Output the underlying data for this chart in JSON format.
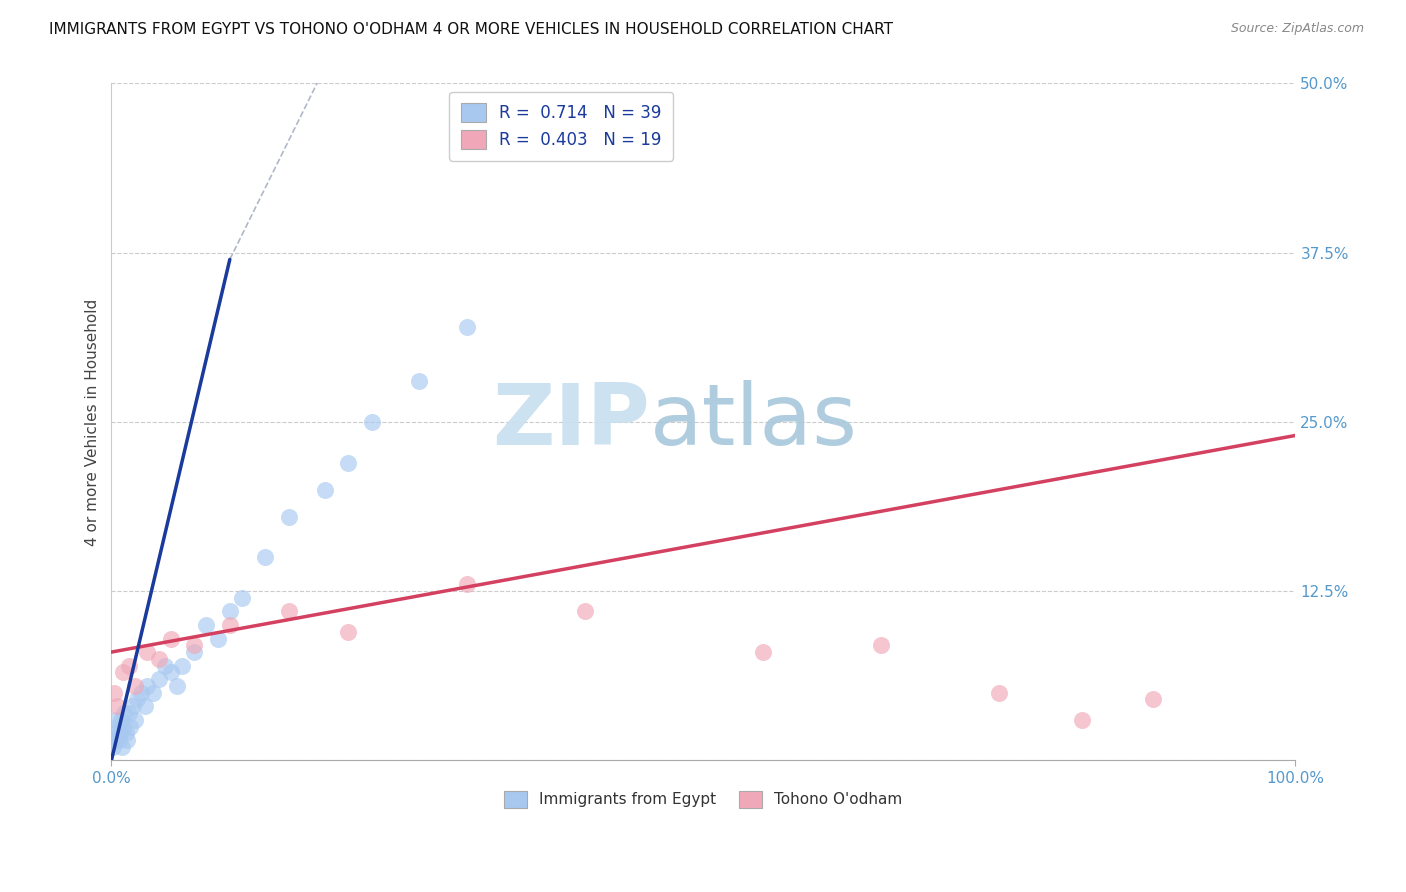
{
  "title": "IMMIGRANTS FROM EGYPT VS TOHONO O'ODHAM 4 OR MORE VEHICLES IN HOUSEHOLD CORRELATION CHART",
  "source": "Source: ZipAtlas.com",
  "ylabel_label": "4 or more Vehicles in Household",
  "legend_labels": [
    "Immigrants from Egypt",
    "Tohono O'odham"
  ],
  "R_blue": 0.714,
  "N_blue": 39,
  "R_pink": 0.403,
  "N_pink": 19,
  "blue_scatter_color": "#a8c8f0",
  "pink_scatter_color": "#f0a8b8",
  "blue_line_color": "#1a3a9c",
  "pink_line_color": "#d44060",
  "dashed_line_color": "#b0b8c8",
  "watermark_zip_color": "#c8dff0",
  "watermark_atlas_color": "#a8c8dc",
  "blue_x": [
    0.1,
    0.2,
    0.3,
    0.4,
    0.5,
    0.6,
    0.7,
    0.8,
    0.9,
    1.0,
    1.1,
    1.2,
    1.3,
    1.5,
    1.6,
    1.8,
    2.0,
    2.2,
    2.5,
    2.8,
    3.0,
    3.5,
    4.0,
    4.5,
    5.0,
    5.5,
    6.0,
    7.0,
    8.0,
    9.0,
    10.0,
    11.0,
    13.0,
    15.0,
    18.0,
    20.0,
    22.0,
    26.0,
    30.0
  ],
  "blue_y": [
    1.0,
    2.0,
    1.5,
    3.0,
    2.5,
    1.5,
    2.0,
    3.0,
    1.0,
    2.5,
    3.5,
    2.0,
    1.5,
    3.5,
    2.5,
    4.0,
    3.0,
    4.5,
    5.0,
    4.0,
    5.5,
    5.0,
    6.0,
    7.0,
    6.5,
    5.5,
    7.0,
    8.0,
    10.0,
    9.0,
    11.0,
    12.0,
    15.0,
    18.0,
    20.0,
    22.0,
    25.0,
    28.0,
    32.0
  ],
  "pink_x": [
    0.2,
    0.5,
    1.0,
    1.5,
    2.0,
    3.0,
    4.0,
    5.0,
    7.0,
    10.0,
    15.0,
    20.0,
    30.0,
    40.0,
    55.0,
    65.0,
    75.0,
    82.0,
    88.0
  ],
  "pink_y": [
    5.0,
    4.0,
    6.5,
    7.0,
    5.5,
    8.0,
    7.5,
    9.0,
    8.5,
    10.0,
    11.0,
    9.5,
    13.0,
    11.0,
    8.0,
    8.5,
    5.0,
    3.0,
    4.5
  ],
  "blue_line_x_start": 0,
  "blue_line_x_end": 10,
  "blue_line_y_start": 0,
  "blue_line_y_end": 37.0,
  "blue_dash_x_start": 10,
  "blue_dash_x_end": 40,
  "blue_dash_y_start": 37.0,
  "blue_dash_y_end": 90.0,
  "pink_line_x_start": 0,
  "pink_line_x_end": 100,
  "pink_line_y_start": 8.0,
  "pink_line_y_end": 24.0,
  "xlim": [
    0,
    100
  ],
  "ylim": [
    0,
    50
  ],
  "yticks": [
    0,
    12.5,
    25.0,
    37.5,
    50.0
  ]
}
